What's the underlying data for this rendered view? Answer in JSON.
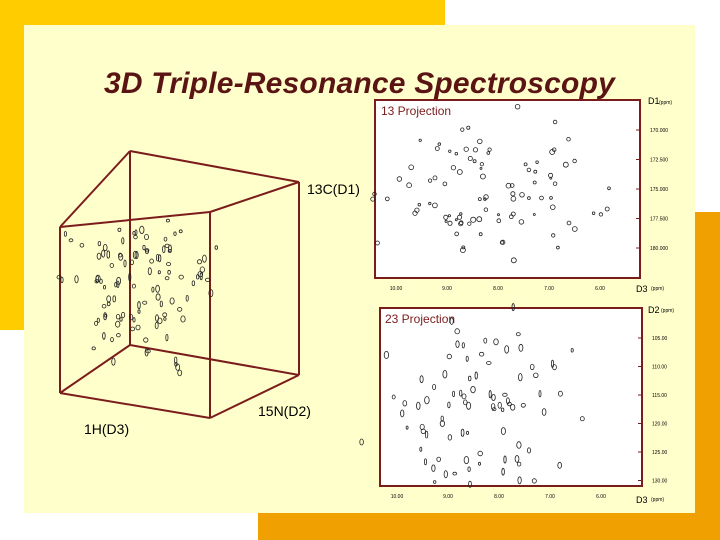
{
  "slide": {
    "title": "3D Triple-Resonance Spectroscopy",
    "cube": {
      "axis_c": "13C(D1)",
      "axis_n": "15N(D2)",
      "axis_h": "1H(D3)"
    },
    "projection13": {
      "title": "13 Projection",
      "d1_label": "D1",
      "d1_unit": "(ppm)",
      "d3_label": "D3",
      "d3_unit": "(ppm)",
      "y_ticks": [
        "170.000",
        "172.500",
        "175.000",
        "177.500",
        "180.000"
      ],
      "x_ticks": [
        "10.00",
        "9.00",
        "8.00",
        "7.00",
        "6.00"
      ]
    },
    "projection23": {
      "title": "23 Projection",
      "d2_label": "D2",
      "d2_unit": "(ppm)",
      "d3_label": "D3",
      "d3_unit": "(ppm)",
      "y_ticks": [
        "105.00",
        "110.00",
        "115.00",
        "120.00",
        "125.00",
        "130.00"
      ],
      "x_ticks": [
        "10.00",
        "9.00",
        "8.00",
        "7.00",
        "6.00"
      ]
    }
  },
  "colors": {
    "frame": "#7a1c1c",
    "title": "#5a1414",
    "yellow": "#ffcc00",
    "orange": "#f0a000",
    "slide_bg": "#ffffcc"
  }
}
